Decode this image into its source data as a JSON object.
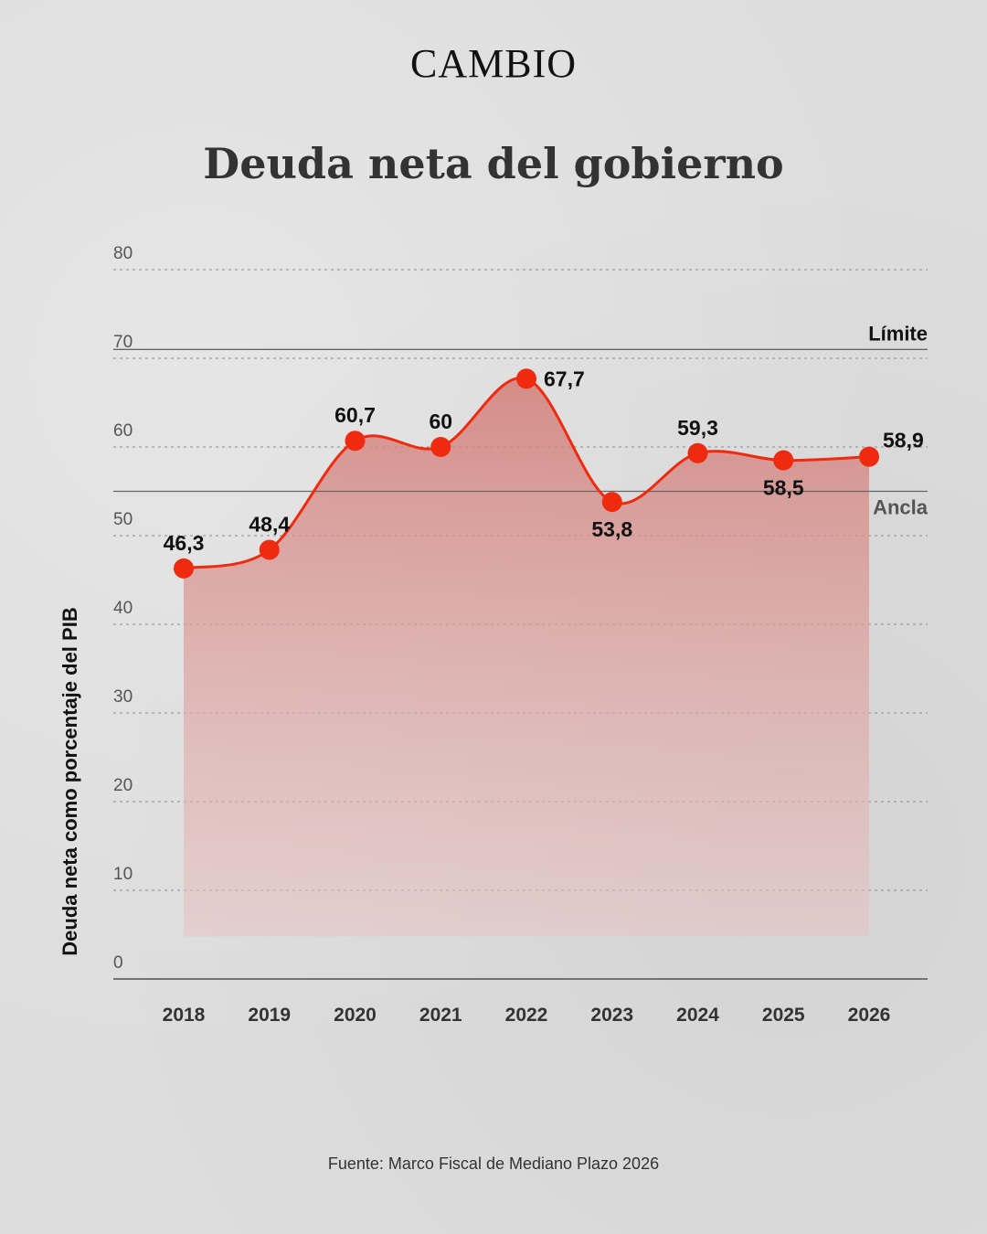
{
  "brand": "CAMBIO",
  "title": "Deuda neta del gobierno",
  "source": "Fuente: Marco Fiscal de Mediano Plazo 2026",
  "colors": {
    "line": "#ee2a0f",
    "area": "#d99a97",
    "reference": "#666666",
    "background": "#dddddd"
  },
  "chart_data": {
    "type": "area",
    "ylabel": "Deuda neta como porcentaje del PIB",
    "xlabel": "",
    "categories": [
      "2018",
      "2019",
      "2020",
      "2021",
      "2022",
      "2023",
      "2024",
      "2025",
      "2026"
    ],
    "values": [
      46.3,
      48.4,
      60.7,
      60,
      67.7,
      53.8,
      59.3,
      58.5,
      58.9
    ],
    "labels": [
      "46,3",
      "48,4",
      "60,7",
      "60",
      "67,7",
      "53,8",
      "59,3",
      "58,5",
      "58,9"
    ],
    "label_positions": [
      "above",
      "above",
      "above",
      "above",
      "right",
      "below",
      "above",
      "below",
      "right"
    ],
    "ylim": [
      0,
      80
    ],
    "yticks": [
      "0",
      "10",
      "20",
      "30",
      "40",
      "50",
      "60",
      "70",
      "80"
    ],
    "grid": true,
    "reference_lines": [
      {
        "label": "Límite",
        "value": 71
      },
      {
        "label": "Ancla",
        "value": 55
      }
    ]
  }
}
